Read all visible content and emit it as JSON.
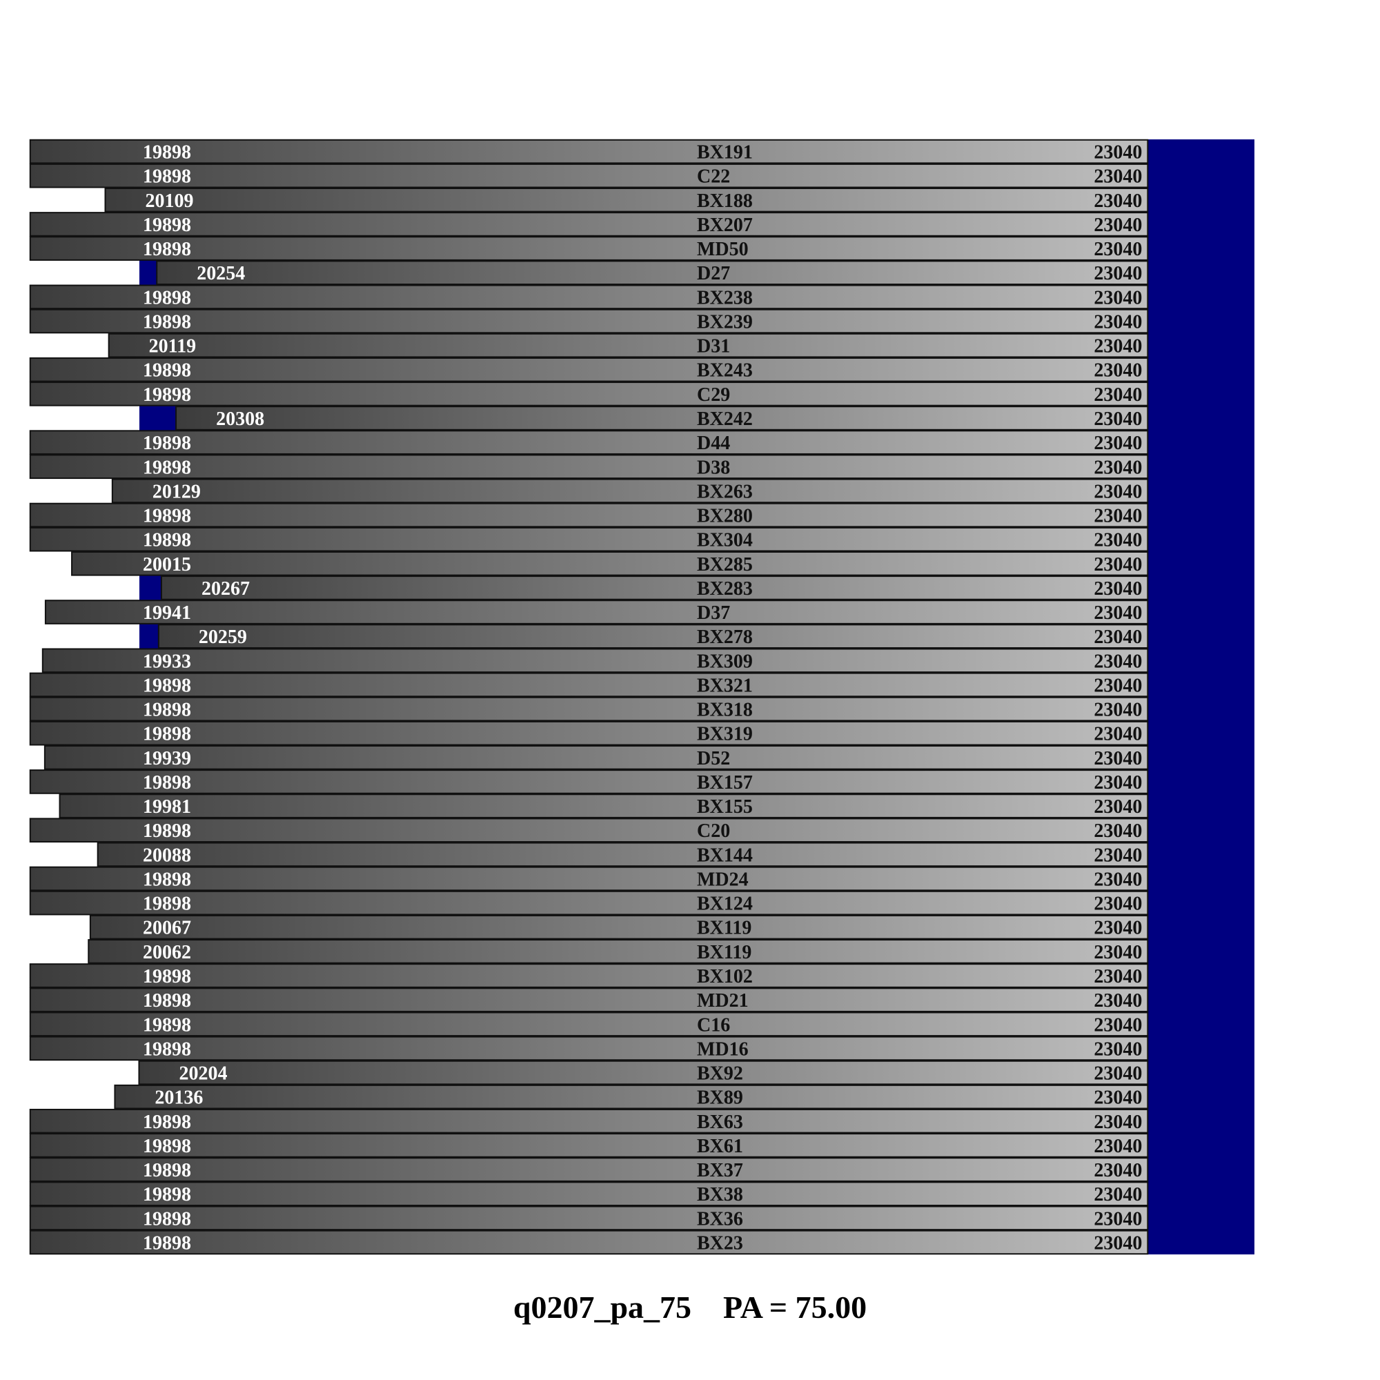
{
  "chart_data": {
    "type": "bar",
    "title": "q0207_pa_75",
    "subtitle": "PA = 75.00",
    "x_range": [
      20205,
      23340
    ],
    "colors": {
      "background": "#000080",
      "bar_start": "#3c3c3c",
      "bar_end": "#bfbfbf",
      "bar_border": "#111111"
    },
    "bars": [
      {
        "name": "BX191",
        "start": 19898,
        "end": 23040
      },
      {
        "name": "C22",
        "start": 19898,
        "end": 23040
      },
      {
        "name": "BX188",
        "start": 20109,
        "end": 23040
      },
      {
        "name": "BX207",
        "start": 19898,
        "end": 23040
      },
      {
        "name": "MD50",
        "start": 19898,
        "end": 23040
      },
      {
        "name": "D27",
        "start": 20254,
        "end": 23040
      },
      {
        "name": "BX238",
        "start": 19898,
        "end": 23040
      },
      {
        "name": "BX239",
        "start": 19898,
        "end": 23040
      },
      {
        "name": "D31",
        "start": 20119,
        "end": 23040
      },
      {
        "name": "BX243",
        "start": 19898,
        "end": 23040
      },
      {
        "name": "C29",
        "start": 19898,
        "end": 23040
      },
      {
        "name": "BX242",
        "start": 20308,
        "end": 23040
      },
      {
        "name": "D44",
        "start": 19898,
        "end": 23040
      },
      {
        "name": "D38",
        "start": 19898,
        "end": 23040
      },
      {
        "name": "BX263",
        "start": 20129,
        "end": 23040
      },
      {
        "name": "BX280",
        "start": 19898,
        "end": 23040
      },
      {
        "name": "BX304",
        "start": 19898,
        "end": 23040
      },
      {
        "name": "BX285",
        "start": 20015,
        "end": 23040
      },
      {
        "name": "BX283",
        "start": 20267,
        "end": 23040
      },
      {
        "name": "D37",
        "start": 19941,
        "end": 23040
      },
      {
        "name": "BX278",
        "start": 20259,
        "end": 23040
      },
      {
        "name": "BX309",
        "start": 19933,
        "end": 23040
      },
      {
        "name": "BX321",
        "start": 19898,
        "end": 23040
      },
      {
        "name": "BX318",
        "start": 19898,
        "end": 23040
      },
      {
        "name": "BX319",
        "start": 19898,
        "end": 23040
      },
      {
        "name": "D52",
        "start": 19939,
        "end": 23040
      },
      {
        "name": "BX157",
        "start": 19898,
        "end": 23040
      },
      {
        "name": "BX155",
        "start": 19981,
        "end": 23040
      },
      {
        "name": "C20",
        "start": 19898,
        "end": 23040
      },
      {
        "name": "BX144",
        "start": 20088,
        "end": 23040
      },
      {
        "name": "MD24",
        "start": 19898,
        "end": 23040
      },
      {
        "name": "BX124",
        "start": 19898,
        "end": 23040
      },
      {
        "name": "BX119",
        "start": 20067,
        "end": 23040
      },
      {
        "name": "BX119",
        "start": 20062,
        "end": 23040
      },
      {
        "name": "BX102",
        "start": 19898,
        "end": 23040
      },
      {
        "name": "MD21",
        "start": 19898,
        "end": 23040
      },
      {
        "name": "C16",
        "start": 19898,
        "end": 23040
      },
      {
        "name": "MD16",
        "start": 19898,
        "end": 23040
      },
      {
        "name": "BX92",
        "start": 20204,
        "end": 23040
      },
      {
        "name": "BX89",
        "start": 20136,
        "end": 23040
      },
      {
        "name": "BX63",
        "start": 19898,
        "end": 23040
      },
      {
        "name": "BX61",
        "start": 19898,
        "end": 23040
      },
      {
        "name": "BX37",
        "start": 19898,
        "end": 23040
      },
      {
        "name": "BX38",
        "start": 19898,
        "end": 23040
      },
      {
        "name": "BX36",
        "start": 19898,
        "end": 23040
      },
      {
        "name": "BX23",
        "start": 19898,
        "end": 23040
      }
    ]
  }
}
